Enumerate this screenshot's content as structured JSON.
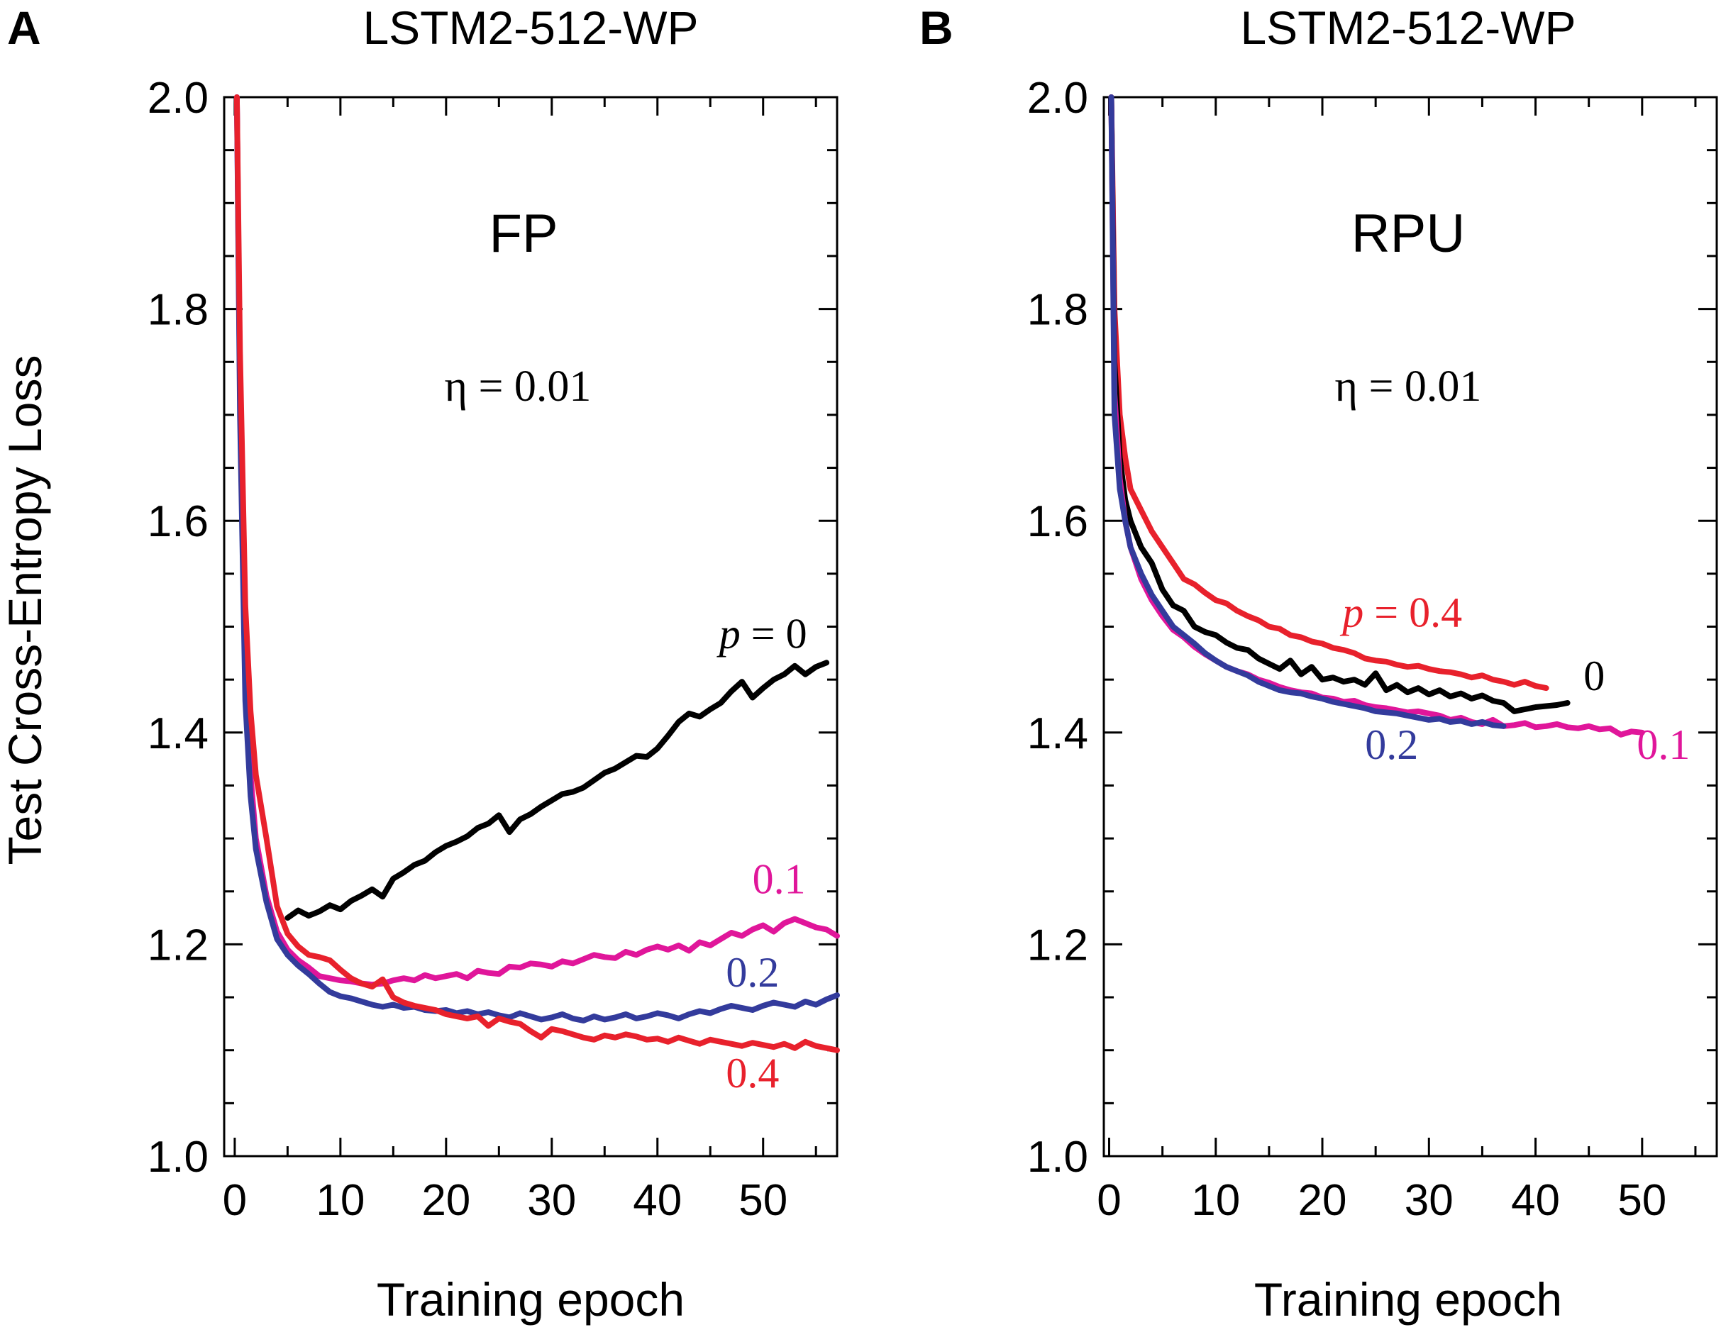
{
  "colors": {
    "black": "#000000",
    "magenta": "#e0169a",
    "blue": "#333b9c",
    "red": "#e8212c"
  },
  "y_axis_label": "Test Cross-Entropy Loss",
  "chart_data": [
    {
      "type": "line",
      "panel_letter": "A",
      "title": "LSTM2-512-WP",
      "annotation": "FP",
      "parameter_text": "η = 0.01",
      "xlabel": "Training epoch",
      "ylabel": "Test Cross-Entropy Loss",
      "xlim": [
        -1,
        57
      ],
      "ylim": [
        1.0,
        2.0
      ],
      "xticks": [
        0,
        10,
        20,
        30,
        40,
        50
      ],
      "yticks": [
        1.0,
        1.2,
        1.4,
        1.6,
        1.8,
        2.0
      ],
      "ytick_labels": [
        "1.0",
        "1.2",
        "1.4",
        "1.6",
        "1.8",
        "2.0"
      ],
      "series": [
        {
          "name": "p = 0",
          "label": "p = 0",
          "label_prefix": "p",
          "label_suffix": " = 0",
          "color_key": "black",
          "label_at": [
            50,
            1.48
          ],
          "x": [
            5,
            6,
            7,
            8,
            9,
            10,
            11,
            12,
            13,
            14,
            15,
            16,
            17,
            18,
            19,
            20,
            21,
            22,
            23,
            24,
            25,
            26,
            27,
            28,
            29,
            30,
            31,
            32,
            33,
            34,
            35,
            36,
            37,
            38,
            39,
            40,
            41,
            42,
            43,
            44,
            45,
            46,
            47,
            48,
            49,
            50,
            51,
            52,
            53,
            54,
            55,
            56
          ],
          "y": [
            1.225,
            1.232,
            1.227,
            1.231,
            1.237,
            1.233,
            1.241,
            1.246,
            1.252,
            1.245,
            1.262,
            1.268,
            1.275,
            1.279,
            1.287,
            1.293,
            1.297,
            1.302,
            1.31,
            1.314,
            1.322,
            1.306,
            1.318,
            1.323,
            1.33,
            1.336,
            1.342,
            1.344,
            1.348,
            1.355,
            1.362,
            1.366,
            1.372,
            1.378,
            1.377,
            1.385,
            1.397,
            1.41,
            1.418,
            1.415,
            1.422,
            1.428,
            1.439,
            1.448,
            1.433,
            1.442,
            1.45,
            1.455,
            1.463,
            1.455,
            1.462,
            1.466
          ]
        },
        {
          "name": "0.1",
          "label": "0.1",
          "color_key": "magenta",
          "label_at": [
            51.5,
            1.248
          ],
          "x": [
            0.2,
            0.5,
            1,
            1.5,
            2,
            3,
            4,
            5,
            6,
            7,
            8,
            9,
            10,
            11,
            12,
            13,
            14,
            15,
            16,
            17,
            18,
            19,
            20,
            21,
            22,
            23,
            24,
            25,
            26,
            27,
            28,
            29,
            30,
            31,
            32,
            33,
            34,
            35,
            36,
            37,
            38,
            39,
            40,
            41,
            42,
            43,
            44,
            45,
            46,
            47,
            48,
            49,
            50,
            51,
            52,
            53,
            54,
            55,
            56,
            57
          ],
          "y": [
            2.0,
            1.72,
            1.45,
            1.36,
            1.3,
            1.246,
            1.212,
            1.195,
            1.185,
            1.178,
            1.17,
            1.168,
            1.166,
            1.165,
            1.163,
            1.162,
            1.163,
            1.166,
            1.168,
            1.166,
            1.171,
            1.168,
            1.17,
            1.172,
            1.168,
            1.175,
            1.173,
            1.172,
            1.179,
            1.178,
            1.182,
            1.181,
            1.179,
            1.184,
            1.182,
            1.186,
            1.19,
            1.188,
            1.187,
            1.193,
            1.19,
            1.195,
            1.198,
            1.195,
            1.199,
            1.194,
            1.202,
            1.199,
            1.205,
            1.211,
            1.208,
            1.214,
            1.218,
            1.212,
            1.22,
            1.224,
            1.22,
            1.216,
            1.214,
            1.208
          ]
        },
        {
          "name": "0.2",
          "label": "0.2",
          "color_key": "blue",
          "label_at": [
            49,
            1.16
          ],
          "x": [
            0.2,
            0.5,
            1,
            1.5,
            2,
            3,
            4,
            5,
            6,
            7,
            8,
            9,
            10,
            11,
            12,
            13,
            14,
            15,
            16,
            17,
            18,
            19,
            20,
            21,
            22,
            23,
            24,
            25,
            26,
            27,
            28,
            29,
            30,
            31,
            32,
            33,
            34,
            35,
            36,
            37,
            38,
            39,
            40,
            41,
            42,
            43,
            44,
            45,
            46,
            47,
            48,
            49,
            50,
            51,
            52,
            53,
            54,
            55,
            56,
            57
          ],
          "y": [
            2.0,
            1.7,
            1.43,
            1.34,
            1.29,
            1.24,
            1.205,
            1.19,
            1.18,
            1.172,
            1.163,
            1.155,
            1.151,
            1.149,
            1.146,
            1.143,
            1.141,
            1.143,
            1.14,
            1.141,
            1.138,
            1.137,
            1.138,
            1.135,
            1.137,
            1.134,
            1.136,
            1.133,
            1.131,
            1.135,
            1.132,
            1.129,
            1.131,
            1.134,
            1.13,
            1.128,
            1.132,
            1.129,
            1.131,
            1.134,
            1.13,
            1.132,
            1.135,
            1.133,
            1.13,
            1.134,
            1.137,
            1.135,
            1.139,
            1.142,
            1.14,
            1.138,
            1.142,
            1.145,
            1.143,
            1.141,
            1.146,
            1.143,
            1.148,
            1.152
          ]
        },
        {
          "name": "0.4",
          "label": "0.4",
          "color_key": "red",
          "label_at": [
            49,
            1.065
          ],
          "x": [
            0.2,
            0.5,
            1,
            1.5,
            2,
            3,
            4,
            5,
            6,
            7,
            8,
            9,
            10,
            11,
            12,
            13,
            14,
            15,
            16,
            17,
            18,
            19,
            20,
            21,
            22,
            23,
            24,
            25,
            26,
            27,
            28,
            29,
            30,
            31,
            32,
            33,
            34,
            35,
            36,
            37,
            38,
            39,
            40,
            41,
            42,
            43,
            44,
            45,
            46,
            47,
            48,
            49,
            50,
            51,
            52,
            53,
            54,
            55,
            56,
            57
          ],
          "y": [
            2.0,
            1.76,
            1.52,
            1.42,
            1.36,
            1.3,
            1.236,
            1.21,
            1.198,
            1.19,
            1.188,
            1.185,
            1.176,
            1.168,
            1.163,
            1.16,
            1.167,
            1.15,
            1.145,
            1.142,
            1.14,
            1.138,
            1.134,
            1.132,
            1.13,
            1.132,
            1.123,
            1.13,
            1.127,
            1.125,
            1.118,
            1.112,
            1.12,
            1.118,
            1.115,
            1.112,
            1.11,
            1.114,
            1.112,
            1.115,
            1.113,
            1.11,
            1.111,
            1.108,
            1.112,
            1.109,
            1.106,
            1.11,
            1.108,
            1.106,
            1.104,
            1.107,
            1.105,
            1.103,
            1.106,
            1.102,
            1.108,
            1.104,
            1.102,
            1.1
          ]
        }
      ]
    },
    {
      "type": "line",
      "panel_letter": "B",
      "title": "LSTM2-512-WP",
      "annotation": "RPU",
      "parameter_text": "η = 0.01",
      "xlabel": "Training epoch",
      "ylabel": "",
      "xlim": [
        -0.5,
        57
      ],
      "ylim": [
        1.0,
        2.0
      ],
      "xticks": [
        0,
        10,
        20,
        30,
        40,
        50
      ],
      "yticks": [
        1.0,
        1.2,
        1.4,
        1.6,
        1.8,
        2.0
      ],
      "ytick_labels": [
        "1.0",
        "1.2",
        "1.4",
        "1.6",
        "1.8",
        "2.0"
      ],
      "series": [
        {
          "name": "p = 0.4",
          "label": "p = 0.4",
          "label_prefix": "p",
          "label_suffix": " = 0.4",
          "color_key": "red",
          "label_at": [
            27.5,
            1.5
          ],
          "x": [
            0.2,
            0.5,
            1,
            1.5,
            2,
            3,
            4,
            5,
            6,
            7,
            8,
            9,
            10,
            11,
            12,
            13,
            14,
            15,
            16,
            17,
            18,
            19,
            20,
            21,
            22,
            23,
            24,
            25,
            26,
            27,
            28,
            29,
            30,
            31,
            32,
            33,
            34,
            35,
            36,
            37,
            38,
            39,
            40,
            41
          ],
          "y": [
            2.0,
            1.8,
            1.7,
            1.66,
            1.63,
            1.61,
            1.59,
            1.575,
            1.56,
            1.545,
            1.54,
            1.532,
            1.525,
            1.522,
            1.515,
            1.51,
            1.506,
            1.5,
            1.498,
            1.492,
            1.49,
            1.486,
            1.484,
            1.48,
            1.478,
            1.475,
            1.47,
            1.468,
            1.467,
            1.464,
            1.462,
            1.463,
            1.46,
            1.458,
            1.457,
            1.455,
            1.452,
            1.454,
            1.45,
            1.448,
            1.445,
            1.448,
            1.444,
            1.442
          ]
        },
        {
          "name": "0",
          "label": "0",
          "color_key": "black",
          "label_at": [
            45.5,
            1.44
          ],
          "x": [
            0.2,
            0.5,
            1,
            1.5,
            2,
            3,
            4,
            5,
            6,
            7,
            8,
            9,
            10,
            11,
            12,
            13,
            14,
            15,
            16,
            17,
            18,
            19,
            20,
            21,
            22,
            23,
            24,
            25,
            26,
            27,
            28,
            29,
            30,
            31,
            32,
            33,
            34,
            35,
            36,
            37,
            38,
            39,
            40,
            41,
            42,
            43
          ],
          "y": [
            2.0,
            1.75,
            1.66,
            1.62,
            1.6,
            1.575,
            1.56,
            1.535,
            1.52,
            1.515,
            1.5,
            1.495,
            1.492,
            1.485,
            1.48,
            1.478,
            1.47,
            1.465,
            1.46,
            1.468,
            1.455,
            1.462,
            1.45,
            1.452,
            1.448,
            1.45,
            1.445,
            1.456,
            1.44,
            1.445,
            1.438,
            1.442,
            1.436,
            1.44,
            1.434,
            1.437,
            1.432,
            1.435,
            1.43,
            1.428,
            1.42,
            1.422,
            1.424,
            1.425,
            1.426,
            1.428
          ]
        },
        {
          "name": "0.1",
          "label": "0.1",
          "color_key": "magenta",
          "label_at": [
            52,
            1.375
          ],
          "x": [
            0.2,
            0.5,
            1,
            1.5,
            2,
            3,
            4,
            5,
            6,
            7,
            8,
            9,
            10,
            11,
            12,
            13,
            14,
            15,
            16,
            17,
            18,
            19,
            20,
            21,
            22,
            23,
            24,
            25,
            26,
            27,
            28,
            29,
            30,
            31,
            32,
            33,
            34,
            35,
            36,
            37,
            38,
            39,
            40,
            41,
            42,
            43,
            44,
            45,
            46,
            47,
            48,
            49,
            50
          ],
          "y": [
            2.0,
            1.72,
            1.64,
            1.6,
            1.575,
            1.545,
            1.525,
            1.51,
            1.497,
            1.49,
            1.481,
            1.474,
            1.468,
            1.462,
            1.458,
            1.455,
            1.45,
            1.447,
            1.443,
            1.44,
            1.438,
            1.437,
            1.433,
            1.432,
            1.429,
            1.43,
            1.426,
            1.424,
            1.423,
            1.421,
            1.419,
            1.42,
            1.418,
            1.416,
            1.412,
            1.414,
            1.41,
            1.408,
            1.412,
            1.406,
            1.407,
            1.409,
            1.405,
            1.406,
            1.408,
            1.405,
            1.404,
            1.406,
            1.403,
            1.404,
            1.398,
            1.401,
            1.4
          ]
        },
        {
          "name": "0.2",
          "label": "0.2",
          "color_key": "blue",
          "label_at": [
            26.5,
            1.375
          ],
          "x": [
            0.2,
            0.5,
            1,
            1.5,
            2,
            3,
            4,
            5,
            6,
            7,
            8,
            9,
            10,
            11,
            12,
            13,
            14,
            15,
            16,
            17,
            18,
            19,
            20,
            21,
            22,
            23,
            24,
            25,
            26,
            27,
            28,
            29,
            30,
            31,
            32,
            33,
            34,
            35,
            36,
            37
          ],
          "y": [
            2.0,
            1.7,
            1.63,
            1.6,
            1.575,
            1.55,
            1.53,
            1.515,
            1.5,
            1.492,
            1.484,
            1.475,
            1.468,
            1.462,
            1.458,
            1.454,
            1.448,
            1.444,
            1.44,
            1.438,
            1.437,
            1.434,
            1.432,
            1.429,
            1.427,
            1.425,
            1.423,
            1.42,
            1.419,
            1.418,
            1.416,
            1.414,
            1.412,
            1.413,
            1.41,
            1.411,
            1.408,
            1.41,
            1.407,
            1.406
          ]
        }
      ]
    }
  ]
}
